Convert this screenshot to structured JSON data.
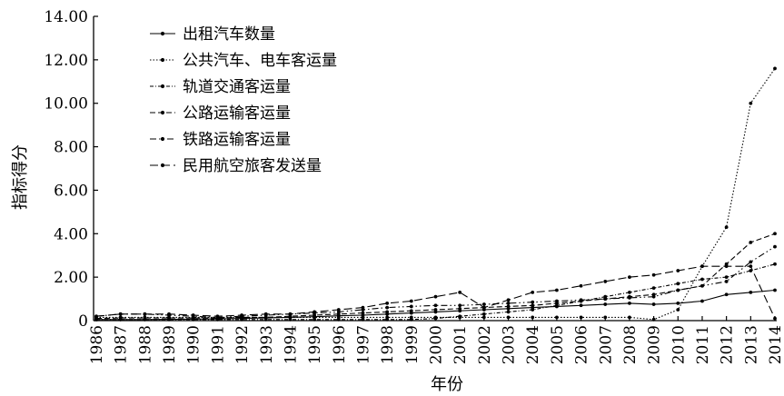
{
  "chart_data": {
    "type": "line",
    "title": "",
    "xlabel": "年份",
    "ylabel": "指标得分",
    "ylim": [
      0,
      14
    ],
    "yticks": [
      "0",
      "2.00",
      "4.00",
      "6.00",
      "8.00",
      "10.00",
      "12.00",
      "14.00"
    ],
    "categories": [
      "1986",
      "1987",
      "1988",
      "1989",
      "1990",
      "1991",
      "1992",
      "1993",
      "1994",
      "1995",
      "1996",
      "1997",
      "1998",
      "1999",
      "2000",
      "2001",
      "2002",
      "2003",
      "2004",
      "2005",
      "2006",
      "2007",
      "2008",
      "2009",
      "2010",
      "2011",
      "2012",
      "2013",
      "2014"
    ],
    "grid": false,
    "legend_position": "top-left",
    "series": [
      {
        "name": "出租汽车数量",
        "dash": "",
        "values": [
          0.05,
          0.05,
          0.05,
          0.06,
          0.07,
          0.08,
          0.1,
          0.12,
          0.15,
          0.18,
          0.22,
          0.25,
          0.3,
          0.35,
          0.4,
          0.45,
          0.5,
          0.55,
          0.6,
          0.65,
          0.7,
          0.75,
          0.8,
          0.75,
          0.8,
          0.9,
          1.2,
          1.3,
          1.4
        ]
      },
      {
        "name": "公共汽车、电车客运量",
        "dash": "1.5,2",
        "values": [
          0.15,
          0.15,
          0.15,
          0.15,
          0.15,
          0.15,
          0.15,
          0.15,
          0.15,
          0.15,
          0.15,
          0.15,
          0.15,
          0.15,
          0.15,
          0.15,
          0.15,
          0.15,
          0.15,
          0.15,
          0.15,
          0.15,
          0.15,
          0.05,
          0.5,
          2.5,
          4.3,
          10.0,
          11.6
        ]
      },
      {
        "name": "轨道交通客运量",
        "dash": "4,2,1,2",
        "values": [
          0.05,
          0.05,
          0.05,
          0.05,
          0.05,
          0.05,
          0.05,
          0.05,
          0.05,
          0.05,
          0.05,
          0.05,
          0.05,
          0.05,
          0.1,
          0.2,
          0.3,
          0.4,
          0.5,
          0.7,
          0.9,
          1.1,
          1.3,
          1.5,
          1.7,
          1.9,
          2.0,
          2.3,
          2.6
        ]
      },
      {
        "name": "公路运输客运量",
        "dash": "6,3",
        "values": [
          0.1,
          0.12,
          0.12,
          0.12,
          0.12,
          0.12,
          0.15,
          0.15,
          0.2,
          0.25,
          0.3,
          0.35,
          0.4,
          0.45,
          0.5,
          0.55,
          0.6,
          0.65,
          0.7,
          0.8,
          0.9,
          1.0,
          1.1,
          1.2,
          1.4,
          1.6,
          2.6,
          3.6,
          4.0
        ]
      },
      {
        "name": "铁路运输客运量",
        "dash": "7,3,1.5,3,1.5,3",
        "values": [
          0.2,
          0.3,
          0.3,
          0.25,
          0.2,
          0.15,
          0.2,
          0.25,
          0.3,
          0.35,
          0.4,
          0.5,
          0.6,
          0.65,
          0.7,
          0.7,
          0.75,
          0.8,
          0.85,
          0.9,
          0.95,
          1.0,
          1.05,
          1.1,
          1.4,
          1.6,
          1.8,
          2.7,
          3.4
        ]
      },
      {
        "name": "民用航空旅客发送量",
        "dash": "9,4",
        "values": [
          0.2,
          0.3,
          0.3,
          0.3,
          0.25,
          0.2,
          0.25,
          0.3,
          0.3,
          0.4,
          0.5,
          0.6,
          0.8,
          0.9,
          1.1,
          1.3,
          0.6,
          0.95,
          1.3,
          1.4,
          1.6,
          1.8,
          2.0,
          2.1,
          2.3,
          2.5,
          2.5,
          2.5,
          0.1
        ]
      }
    ]
  }
}
